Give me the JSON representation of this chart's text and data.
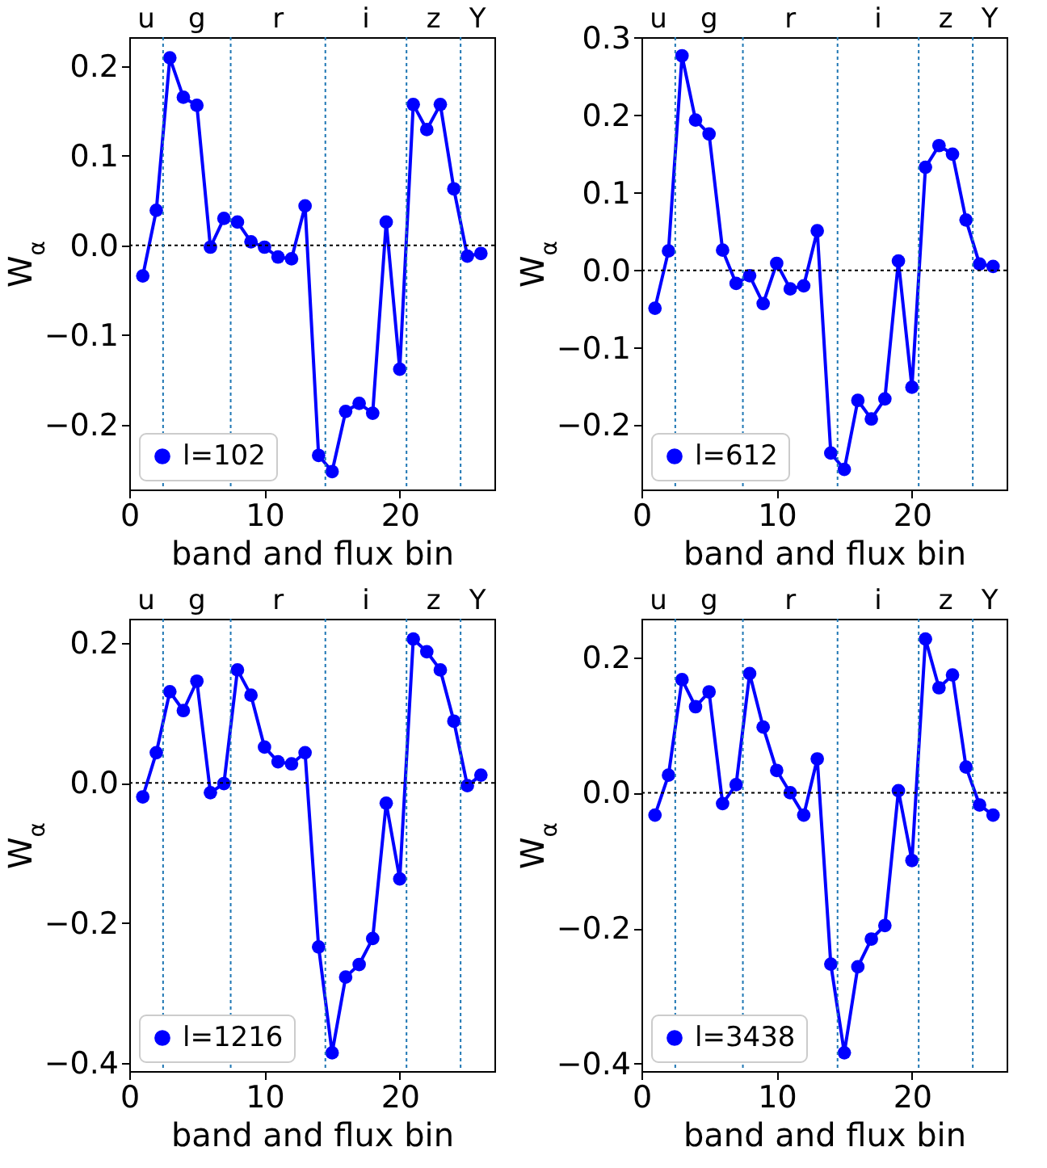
{
  "chart_data": [
    {
      "type": "line",
      "xlabel": "band and flux bin",
      "ylabel": "W$_{α}$",
      "x": [
        1,
        2,
        3,
        4,
        5,
        6,
        7,
        8,
        9,
        10,
        11,
        12,
        13,
        14,
        15,
        16,
        17,
        18,
        19,
        20,
        21,
        22,
        23,
        24,
        25,
        26
      ],
      "series": [
        {
          "name": "l=102",
          "color": "#0000ff",
          "values": [
            -0.034,
            0.039,
            0.209,
            0.165,
            0.156,
            -0.002,
            0.03,
            0.026,
            0.004,
            -0.002,
            -0.013,
            -0.015,
            0.044,
            -0.234,
            -0.252,
            -0.185,
            -0.176,
            -0.187,
            0.026,
            -0.138,
            0.157,
            0.129,
            0.157,
            0.063,
            -0.012,
            -0.009
          ]
        }
      ],
      "xlim": [
        0,
        27
      ],
      "xticks": [
        0,
        10,
        20
      ],
      "ylim": [
        -0.272,
        0.232
      ],
      "yticks": [
        {
          "value": -0.2,
          "label": "−0.2"
        },
        {
          "value": -0.1,
          "label": "−0.1"
        },
        {
          "value": 0,
          "label": "0.0"
        },
        {
          "value": 0.1,
          "label": "0.1"
        },
        {
          "value": 0.2,
          "label": "0.2"
        }
      ],
      "annotations": [
        "u",
        "g",
        "r",
        "i",
        "z",
        "Y"
      ],
      "ref_lines": [
        {
          "axis": "y",
          "value": 0,
          "color": "#000000",
          "line_style": "dotted"
        },
        {
          "axis": "x",
          "value": 2.5,
          "color": "#1f77b4",
          "line_style": "dotted"
        },
        {
          "axis": "x",
          "value": 7.5,
          "color": "#1f77b4",
          "line_style": "dotted"
        },
        {
          "axis": "x",
          "value": 14.5,
          "color": "#1f77b4",
          "line_style": "dotted"
        },
        {
          "axis": "x",
          "value": 20.5,
          "color": "#1f77b4",
          "line_style": "dotted"
        },
        {
          "axis": "x",
          "value": 24.5,
          "color": "#1f77b4",
          "line_style": "dotted"
        }
      ],
      "marker": "circle",
      "line_style": "solid",
      "legend": "bottom left",
      "grid": false
    },
    {
      "type": "line",
      "xlabel": "band and flux bin",
      "ylabel": "W$_{α}$",
      "x": [
        1,
        2,
        3,
        4,
        5,
        6,
        7,
        8,
        9,
        10,
        11,
        12,
        13,
        14,
        15,
        16,
        17,
        18,
        19,
        20,
        21,
        22,
        23,
        24,
        25,
        26
      ],
      "series": [
        {
          "name": "l=612",
          "color": "#0000ff",
          "values": [
            -0.049,
            0.025,
            0.277,
            0.194,
            0.176,
            0.026,
            -0.017,
            -0.007,
            -0.043,
            0.009,
            -0.024,
            -0.02,
            0.051,
            -0.236,
            -0.257,
            -0.168,
            -0.192,
            -0.166,
            0.012,
            -0.151,
            0.133,
            0.161,
            0.15,
            0.065,
            0.008,
            0.005
          ]
        }
      ],
      "xlim": [
        0,
        27
      ],
      "xticks": [
        0,
        10,
        20
      ],
      "ylim": [
        -0.283,
        0.301
      ],
      "yticks": [
        {
          "value": -0.2,
          "label": "−0.2"
        },
        {
          "value": -0.1,
          "label": "−0.1"
        },
        {
          "value": 0,
          "label": "0.0"
        },
        {
          "value": 0.1,
          "label": "0.1"
        },
        {
          "value": 0.2,
          "label": "0.2"
        },
        {
          "value": 0.3,
          "label": "0.3"
        }
      ],
      "annotations": [
        "u",
        "g",
        "r",
        "i",
        "z",
        "Y"
      ],
      "ref_lines": [
        {
          "axis": "y",
          "value": 0,
          "color": "#000000",
          "line_style": "dotted"
        },
        {
          "axis": "x",
          "value": 2.5,
          "color": "#1f77b4",
          "line_style": "dotted"
        },
        {
          "axis": "x",
          "value": 7.5,
          "color": "#1f77b4",
          "line_style": "dotted"
        },
        {
          "axis": "x",
          "value": 14.5,
          "color": "#1f77b4",
          "line_style": "dotted"
        },
        {
          "axis": "x",
          "value": 20.5,
          "color": "#1f77b4",
          "line_style": "dotted"
        },
        {
          "axis": "x",
          "value": 24.5,
          "color": "#1f77b4",
          "line_style": "dotted"
        }
      ],
      "marker": "circle",
      "line_style": "solid",
      "legend": "bottom left",
      "grid": false
    },
    {
      "type": "line",
      "xlabel": "band and flux bin",
      "ylabel": "W$_{α}$",
      "x": [
        1,
        2,
        3,
        4,
        5,
        6,
        7,
        8,
        9,
        10,
        11,
        12,
        13,
        14,
        15,
        16,
        17,
        18,
        19,
        20,
        21,
        22,
        23,
        24,
        25,
        26
      ],
      "series": [
        {
          "name": "l=1216",
          "color": "#0000ff",
          "values": [
            -0.02,
            0.043,
            0.13,
            0.103,
            0.145,
            -0.014,
            -0.001,
            0.161,
            0.125,
            0.051,
            0.03,
            0.027,
            0.043,
            -0.234,
            -0.385,
            -0.277,
            -0.259,
            -0.222,
            -0.029,
            -0.137,
            0.205,
            0.187,
            0.161,
            0.088,
            -0.004,
            0.011
          ]
        }
      ],
      "xlim": [
        0,
        27
      ],
      "xticks": [
        0,
        10,
        20
      ],
      "ylim": [
        -0.411,
        0.234
      ],
      "yticks": [
        {
          "value": -0.4,
          "label": "−0.4"
        },
        {
          "value": -0.2,
          "label": "−0.2"
        },
        {
          "value": 0,
          "label": "0.0"
        },
        {
          "value": 0.2,
          "label": "0.2"
        }
      ],
      "annotations": [
        "u",
        "g",
        "r",
        "i",
        "z",
        "Y"
      ],
      "ref_lines": [
        {
          "axis": "y",
          "value": 0,
          "color": "#000000",
          "line_style": "dotted"
        },
        {
          "axis": "x",
          "value": 2.5,
          "color": "#1f77b4",
          "line_style": "dotted"
        },
        {
          "axis": "x",
          "value": 7.5,
          "color": "#1f77b4",
          "line_style": "dotted"
        },
        {
          "axis": "x",
          "value": 14.5,
          "color": "#1f77b4",
          "line_style": "dotted"
        },
        {
          "axis": "x",
          "value": 20.5,
          "color": "#1f77b4",
          "line_style": "dotted"
        },
        {
          "axis": "x",
          "value": 24.5,
          "color": "#1f77b4",
          "line_style": "dotted"
        }
      ],
      "marker": "circle",
      "line_style": "solid",
      "legend": "bottom left",
      "grid": false
    },
    {
      "type": "line",
      "xlabel": "band and flux bin",
      "ylabel": "W$_{α}$",
      "x": [
        1,
        2,
        3,
        4,
        5,
        6,
        7,
        8,
        9,
        10,
        11,
        12,
        13,
        14,
        15,
        16,
        17,
        18,
        19,
        20,
        21,
        22,
        23,
        24,
        25,
        26
      ],
      "series": [
        {
          "name": "l=3438",
          "color": "#0000ff",
          "values": [
            -0.033,
            0.026,
            0.167,
            0.127,
            0.149,
            -0.016,
            0.012,
            0.176,
            0.097,
            0.033,
            0.0,
            -0.033,
            0.05,
            -0.253,
            -0.384,
            -0.257,
            -0.216,
            -0.196,
            0.003,
            -0.1,
            0.227,
            0.155,
            0.174,
            0.038,
            -0.018,
            -0.033
          ]
        }
      ],
      "xlim": [
        0,
        27
      ],
      "xticks": [
        0,
        10,
        20
      ],
      "ylim": [
        -0.411,
        0.257
      ],
      "yticks": [
        {
          "value": -0.4,
          "label": "−0.4"
        },
        {
          "value": -0.2,
          "label": "−0.2"
        },
        {
          "value": 0,
          "label": "0.0"
        },
        {
          "value": 0.2,
          "label": "0.2"
        }
      ],
      "annotations": [
        "u",
        "g",
        "r",
        "i",
        "z",
        "Y"
      ],
      "ref_lines": [
        {
          "axis": "y",
          "value": 0,
          "color": "#000000",
          "line_style": "dotted"
        },
        {
          "axis": "x",
          "value": 2.5,
          "color": "#1f77b4",
          "line_style": "dotted"
        },
        {
          "axis": "x",
          "value": 7.5,
          "color": "#1f77b4",
          "line_style": "dotted"
        },
        {
          "axis": "x",
          "value": 14.5,
          "color": "#1f77b4",
          "line_style": "dotted"
        },
        {
          "axis": "x",
          "value": 20.5,
          "color": "#1f77b4",
          "line_style": "dotted"
        },
        {
          "axis": "x",
          "value": 24.5,
          "color": "#1f77b4",
          "line_style": "dotted"
        }
      ],
      "marker": "circle",
      "line_style": "solid",
      "legend": "bottom left",
      "grid": false
    }
  ]
}
